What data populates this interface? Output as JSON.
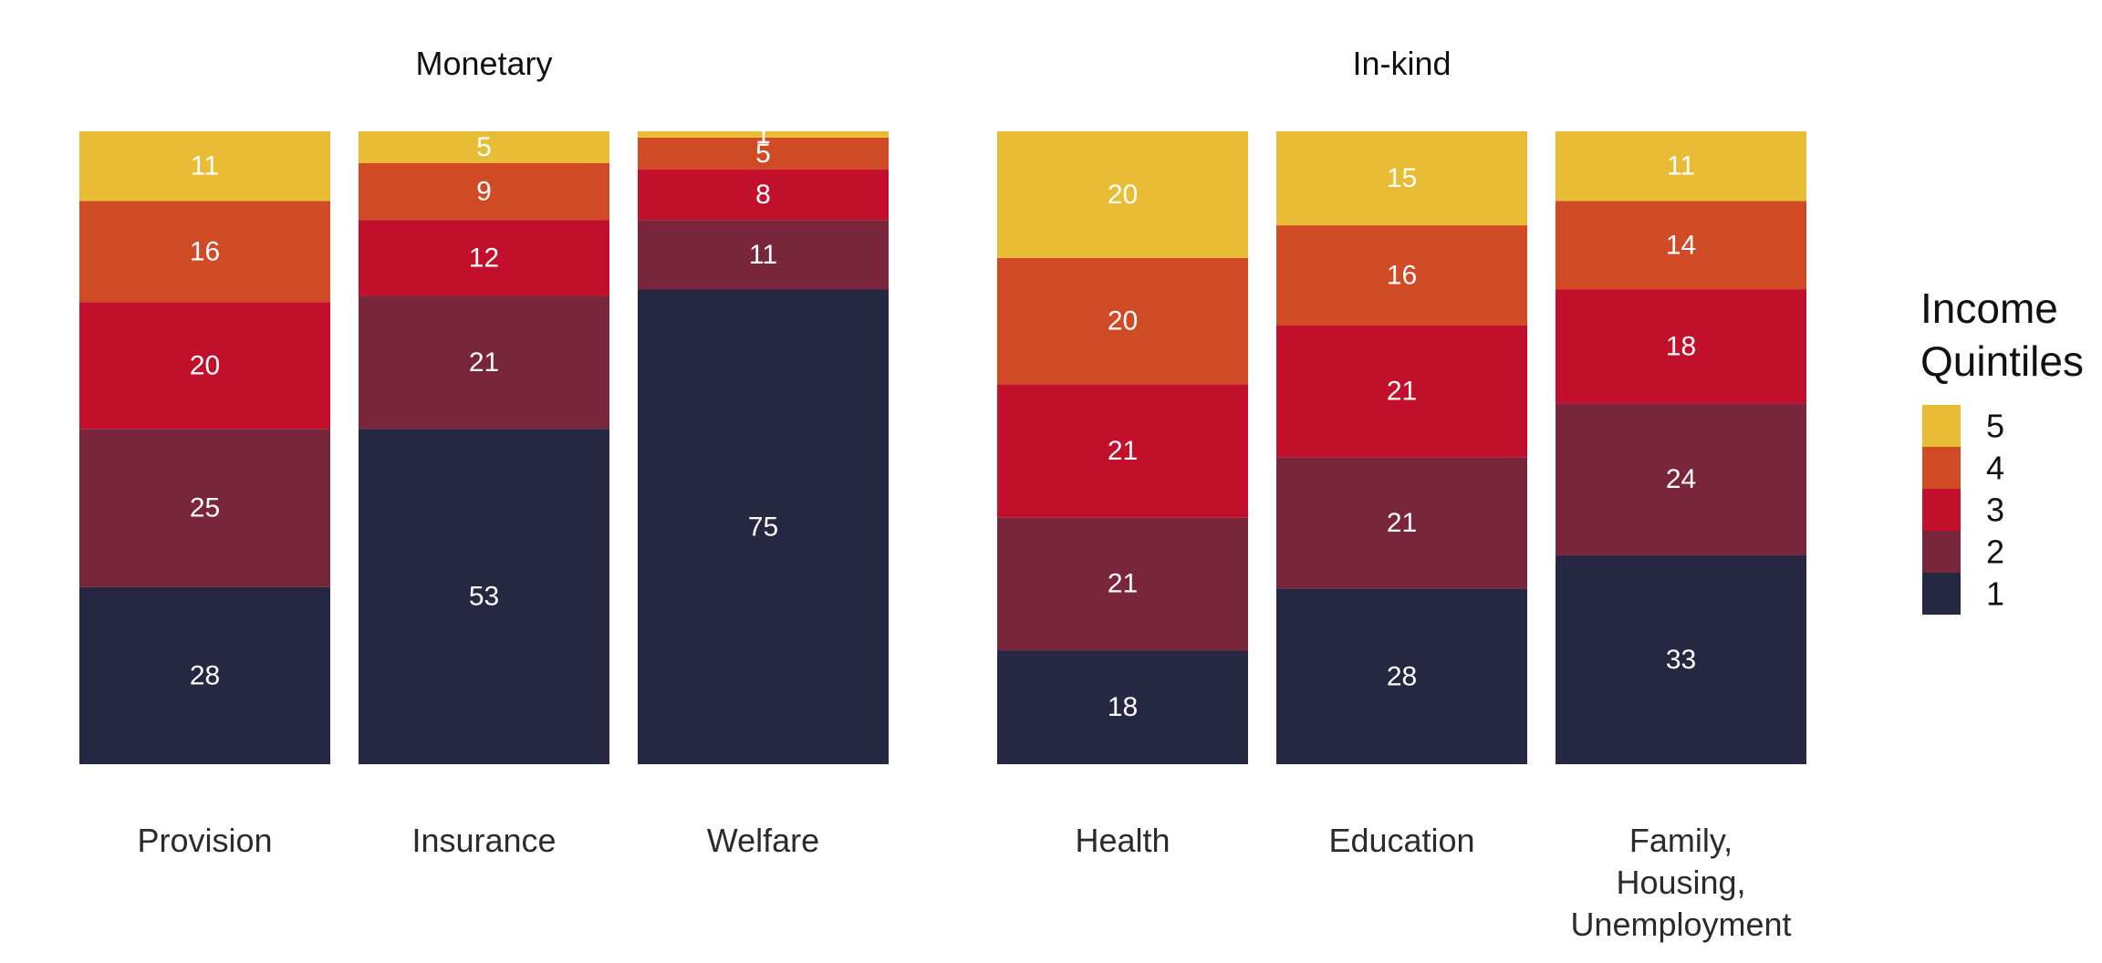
{
  "chart_data": {
    "type": "bar",
    "stacked": true,
    "panels": [
      {
        "title": "Monetary",
        "categories": [
          "Provision",
          "Insurance",
          "Welfare"
        ],
        "series": [
          {
            "name": "1",
            "values": [
              28,
              53,
              75
            ]
          },
          {
            "name": "2",
            "values": [
              25,
              21,
              11
            ]
          },
          {
            "name": "3",
            "values": [
              20,
              12,
              8
            ]
          },
          {
            "name": "4",
            "values": [
              16,
              9,
              5
            ]
          },
          {
            "name": "5",
            "values": [
              11,
              5,
              1
            ]
          }
        ]
      },
      {
        "title": "In-kind",
        "categories": [
          "Health",
          "Education",
          "Family,\nHousing,\nUnemployment"
        ],
        "series": [
          {
            "name": "1",
            "values": [
              18,
              28,
              33
            ]
          },
          {
            "name": "2",
            "values": [
              21,
              21,
              24
            ]
          },
          {
            "name": "3",
            "values": [
              21,
              21,
              18
            ]
          },
          {
            "name": "4",
            "values": [
              20,
              16,
              14
            ]
          },
          {
            "name": "5",
            "values": [
              20,
              15,
              11
            ]
          }
        ]
      }
    ],
    "legend": {
      "title": "Income\nQuintiles",
      "placement": "right",
      "entries": [
        "5",
        "4",
        "3",
        "2",
        "1"
      ]
    },
    "ylim": [
      0,
      100
    ],
    "grid": false,
    "colors": {
      "1": "#262742",
      "2": "#79263d",
      "3": "#c20f2c",
      "4": "#cf4a25",
      "5": "#e9bc36"
    }
  }
}
